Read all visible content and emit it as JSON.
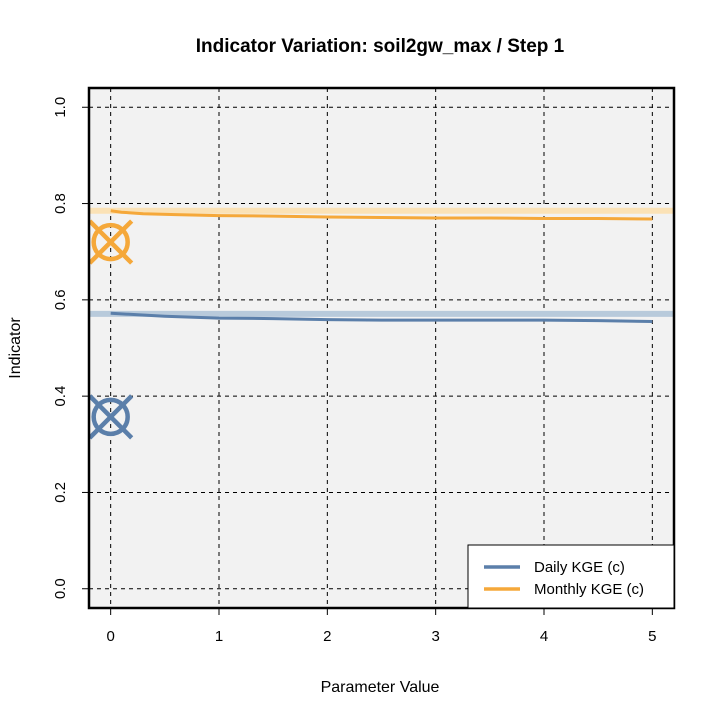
{
  "chart_data": {
    "type": "line",
    "title": "Indicator Variation: soil2gw_max / Step 1",
    "xlabel": "Parameter Value",
    "ylabel": "Indicator",
    "xlim": [
      -0.2,
      5.2
    ],
    "ylim": [
      -0.04,
      1.04
    ],
    "xticks": [
      "0",
      "1",
      "2",
      "3",
      "4",
      "5"
    ],
    "yticks": [
      "0.0",
      "0.2",
      "0.4",
      "0.6",
      "0.8",
      "1.0"
    ],
    "grid": true,
    "legend_position": "bottom-right",
    "series": [
      {
        "name": "Daily KGE (c)",
        "color": "#5b7faa",
        "reference_color": "#b8cadb",
        "reference_value": 0.571,
        "marker": {
          "x": 0,
          "y": 0.357
        },
        "x": [
          0,
          0.5,
          1,
          1.5,
          2,
          2.5,
          3,
          3.5,
          4,
          4.5,
          5
        ],
        "y": [
          0.572,
          0.566,
          0.562,
          0.561,
          0.559,
          0.558,
          0.558,
          0.558,
          0.558,
          0.557,
          0.555
        ]
      },
      {
        "name": "Monthly KGE (c)",
        "color": "#f5a83a",
        "reference_color": "#fbe2b6",
        "reference_value": 0.785,
        "marker": {
          "x": 0,
          "y": 0.72
        },
        "x": [
          0,
          0.1,
          0.3,
          0.6,
          1,
          1.5,
          2,
          2.5,
          3,
          3.5,
          4,
          4.5,
          5
        ],
        "y": [
          0.785,
          0.782,
          0.779,
          0.777,
          0.775,
          0.774,
          0.772,
          0.771,
          0.77,
          0.77,
          0.769,
          0.769,
          0.768
        ]
      }
    ]
  }
}
